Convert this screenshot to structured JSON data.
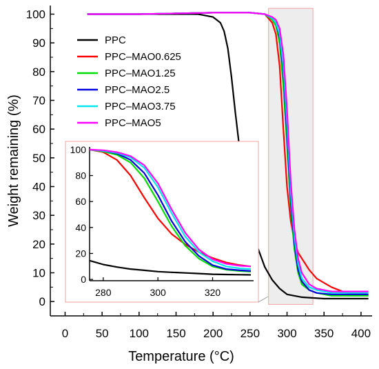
{
  "chart_data": [
    {
      "type": "line",
      "xlabel": "Temperature",
      "xlabel_unit": "(°C)",
      "ylabel": "Weight remaining (%)",
      "xlim": [
        -20,
        415
      ],
      "ylim": [
        -5,
        103
      ],
      "xticks": [
        "0",
        "50",
        "100",
        "150",
        "200",
        "250",
        "300",
        "350",
        "400"
      ],
      "yticks": [
        "0",
        "10",
        "20",
        "30",
        "40",
        "50",
        "60",
        "70",
        "80",
        "90",
        "100"
      ],
      "legend_position": "top-left",
      "highlight_region": {
        "x_range": [
          275,
          335
        ],
        "y_range": [
          -1,
          102
        ]
      },
      "series": [
        {
          "name": "PPC",
          "color": "#000000",
          "x": [
            30,
            100,
            150,
            180,
            200,
            210,
            215,
            220,
            225,
            230,
            235,
            240,
            250,
            260,
            270,
            280,
            290,
            300,
            320,
            350,
            380,
            410
          ],
          "y": [
            100,
            100,
            100,
            100,
            99,
            97,
            94,
            88,
            78,
            66,
            55,
            45,
            30,
            19,
            12,
            7.5,
            4.5,
            2.5,
            1.5,
            1,
            1,
            1
          ]
        },
        {
          "name": "PPC–MAO0.625",
          "color": "#ff0000",
          "x": [
            30,
            100,
            200,
            250,
            270,
            280,
            285,
            290,
            295,
            300,
            305,
            310,
            315,
            320,
            330,
            340,
            360,
            380,
            410
          ],
          "y": [
            100,
            100,
            100.5,
            100.5,
            100,
            97,
            93,
            82,
            60,
            40,
            28,
            21,
            17,
            15,
            11,
            8,
            5,
            3,
            2.5
          ]
        },
        {
          "name": "PPC–MAO1.25",
          "color": "#00dd00",
          "x": [
            30,
            100,
            200,
            250,
            270,
            280,
            285,
            290,
            295,
            300,
            305,
            310,
            315,
            320,
            330,
            340,
            360,
            380,
            410
          ],
          "y": [
            100,
            100,
            100.5,
            100.5,
            100,
            98,
            96,
            90,
            75,
            55,
            33,
            18,
            10,
            6,
            4,
            3,
            2,
            2,
            2
          ]
        },
        {
          "name": "PPC–MAO2.5",
          "color": "#0000dd",
          "x": [
            30,
            100,
            200,
            250,
            270,
            280,
            285,
            290,
            295,
            300,
            305,
            310,
            315,
            320,
            330,
            340,
            360,
            380,
            410
          ],
          "y": [
            100,
            100,
            100.5,
            100.5,
            100,
            98.5,
            97,
            92,
            80,
            58,
            35,
            20,
            11,
            7,
            4,
            3,
            2.5,
            2.5,
            2.5
          ]
        },
        {
          "name": "PPC–MAO3.75",
          "color": "#00e5ee",
          "x": [
            30,
            100,
            200,
            250,
            270,
            280,
            285,
            290,
            295,
            300,
            305,
            310,
            315,
            320,
            330,
            340,
            360,
            380,
            410
          ],
          "y": [
            100,
            100,
            100.5,
            100.5,
            100,
            98.5,
            97,
            93,
            82,
            62,
            38,
            22,
            13,
            8,
            5,
            4,
            3,
            3,
            3
          ]
        },
        {
          "name": "PPC–MAO5",
          "color": "#ff00ff",
          "x": [
            30,
            100,
            200,
            250,
            270,
            280,
            285,
            290,
            295,
            300,
            305,
            310,
            315,
            320,
            330,
            340,
            360,
            380,
            410
          ],
          "y": [
            100,
            100,
            100.5,
            100.5,
            100,
            99,
            98,
            95,
            86,
            67,
            42,
            25,
            15,
            10,
            6,
            4.5,
            3.5,
            3.5,
            3.5
          ]
        }
      ]
    },
    {
      "type": "line",
      "role": "inset",
      "xlim": [
        275,
        335
      ],
      "ylim": [
        -1,
        101
      ],
      "xticks": [
        "280",
        "300",
        "320"
      ],
      "yticks": [
        "0",
        "20",
        "40",
        "60",
        "80",
        "100"
      ],
      "series": [
        {
          "name": "PPC",
          "color": "#000000",
          "x": [
            275,
            280,
            285,
            290,
            295,
            300,
            305,
            310,
            315,
            320,
            325,
            330,
            334
          ],
          "y": [
            14.5,
            11.5,
            9.5,
            8,
            7,
            6,
            5.5,
            5,
            4.5,
            4,
            3.8,
            3.6,
            3.5
          ]
        },
        {
          "name": "PPC–MAO0.625",
          "color": "#ff0000",
          "x": [
            275,
            280,
            285,
            290,
            295,
            300,
            305,
            310,
            315,
            320,
            325,
            330,
            334
          ],
          "y": [
            100,
            98,
            92,
            80,
            63,
            47,
            35,
            27,
            21,
            16.5,
            13,
            11,
            10
          ]
        },
        {
          "name": "PPC–MAO1.25",
          "color": "#00dd00",
          "x": [
            275,
            280,
            285,
            290,
            295,
            300,
            305,
            310,
            315,
            320,
            325,
            330,
            334
          ],
          "y": [
            100,
            98.5,
            96,
            90,
            78,
            60,
            41,
            26,
            16,
            10,
            7.5,
            6.5,
            6
          ]
        },
        {
          "name": "PPC–MAO2.5",
          "color": "#0000dd",
          "x": [
            275,
            280,
            285,
            290,
            295,
            300,
            305,
            310,
            315,
            320,
            325,
            330,
            334
          ],
          "y": [
            100,
            99,
            97,
            92,
            82,
            65,
            45,
            29,
            18,
            11,
            8,
            7,
            6.5
          ]
        },
        {
          "name": "PPC–MAO3.75",
          "color": "#00e5ee",
          "x": [
            275,
            280,
            285,
            290,
            295,
            300,
            305,
            310,
            315,
            320,
            325,
            330,
            334
          ],
          "y": [
            100,
            99,
            97.5,
            94,
            86,
            71,
            51,
            33,
            21,
            14,
            10,
            8.5,
            8
          ]
        },
        {
          "name": "PPC–MAO5",
          "color": "#ff00ff",
          "x": [
            275,
            280,
            285,
            290,
            295,
            300,
            305,
            310,
            315,
            320,
            325,
            330,
            334
          ],
          "y": [
            100,
            99.5,
            98,
            95,
            88,
            74,
            54,
            36,
            23,
            15.5,
            12,
            10.5,
            10
          ]
        }
      ]
    }
  ]
}
